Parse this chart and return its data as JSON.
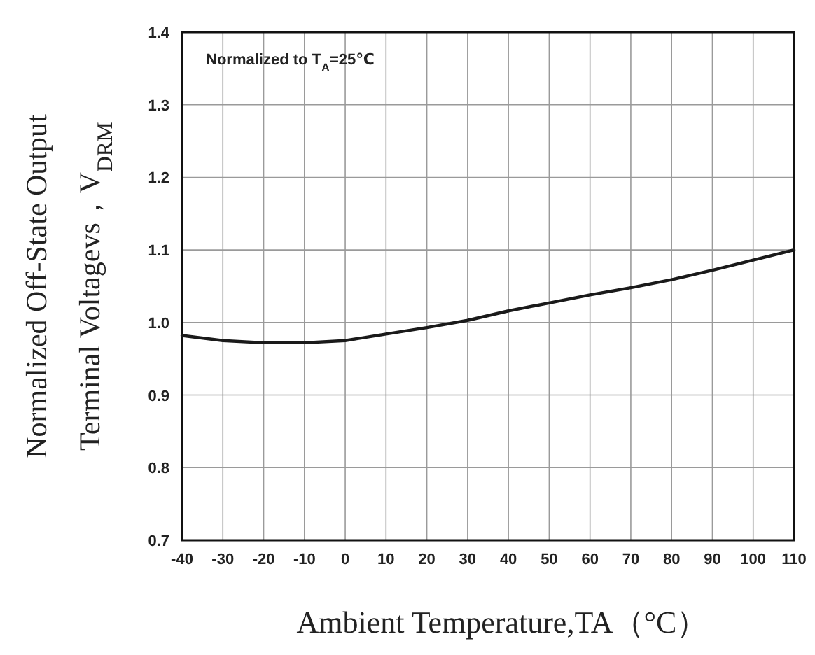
{
  "chart_data": {
    "type": "line",
    "xlabel": "Ambient Temperature,TA（°C）",
    "ylabel": "Normalized Off-State Output\nTerminal Voltagevs，V$_{DRM}$",
    "annotations": [
      "Normalized to T$_{A}$=25℃"
    ],
    "x": [
      -40,
      -30,
      -20,
      -10,
      0,
      10,
      20,
      30,
      40,
      50,
      60,
      70,
      80,
      90,
      100,
      110
    ],
    "series": [
      {
        "color": "#1a1a1a",
        "values": [
          0.982,
          0.975,
          0.972,
          0.972,
          0.975,
          0.984,
          0.993,
          1.003,
          1.016,
          1.027,
          1.038,
          1.048,
          1.059,
          1.072,
          1.086,
          1.1
        ]
      }
    ],
    "xlim": [
      -40,
      110
    ],
    "xticks": [
      -40,
      -30,
      -20,
      -10,
      0,
      10,
      20,
      30,
      40,
      50,
      60,
      70,
      80,
      90,
      100,
      110
    ],
    "ylim": [
      0.7,
      1.4
    ],
    "yticks": [
      {
        "value": 0.7,
        "label": "0.7"
      },
      {
        "value": 0.8,
        "label": "0.8"
      },
      {
        "value": 0.9,
        "label": "0.9"
      },
      {
        "value": 1.0,
        "label": "1.0"
      },
      {
        "value": 1.1,
        "label": "1.1"
      },
      {
        "value": 1.2,
        "label": "1.2"
      },
      {
        "value": 1.3,
        "label": "1.3"
      },
      {
        "value": 1.4,
        "label": "1.4"
      }
    ],
    "grid": true,
    "marker": "none",
    "line_style": "solid"
  }
}
